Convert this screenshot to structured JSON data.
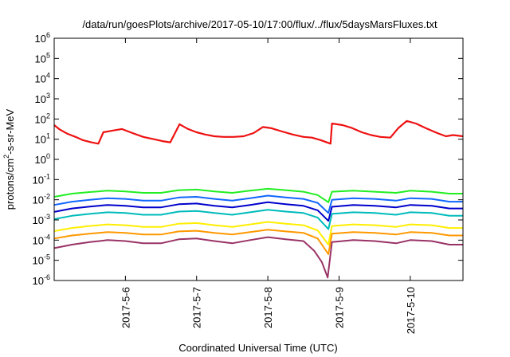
{
  "chart_data": {
    "type": "line",
    "title": "/data/run/goesPlots/archive/2017-05-10/17:00/flux/../flux/5daysMarsFluxes.txt",
    "xlabel": "Coordinated Universal Time (UTC)",
    "ylabel_parts": [
      "protons/cm",
      "2",
      "-s-sr-MeV"
    ],
    "xlim": [
      0,
      5.74
    ],
    "ylim_exponent": [
      -6,
      6
    ],
    "yscale": "log",
    "grid": false,
    "x_unit_note": "days after 2017-05-05 00:00 UTC",
    "x_ticks": [
      {
        "x": 1,
        "label": "2017-5-6"
      },
      {
        "x": 2,
        "label": "2017-5-7"
      },
      {
        "x": 3,
        "label": "2017-5-8"
      },
      {
        "x": 4,
        "label": "2017-5-9"
      },
      {
        "x": 5,
        "label": "2017-5-10"
      }
    ],
    "y_ticks": [
      {
        "exp": -6,
        "base": "10",
        "sup": "-6"
      },
      {
        "exp": -5,
        "base": "10",
        "sup": "-5"
      },
      {
        "exp": -4,
        "base": "10",
        "sup": "-4"
      },
      {
        "exp": -3,
        "base": "10",
        "sup": "-3"
      },
      {
        "exp": -2,
        "base": "10",
        "sup": "-2"
      },
      {
        "exp": -1,
        "base": "10",
        "sup": "-1"
      },
      {
        "exp": 0,
        "base": "10",
        "sup": "0"
      },
      {
        "exp": 1,
        "base": "10",
        "sup": "1"
      },
      {
        "exp": 2,
        "base": "10",
        "sup": "2"
      },
      {
        "exp": 3,
        "base": "10",
        "sup": "3"
      },
      {
        "exp": 4,
        "base": "10",
        "sup": "4"
      },
      {
        "exp": 5,
        "base": "10",
        "sup": "5"
      },
      {
        "exp": 6,
        "base": "10",
        "sup": "6"
      }
    ],
    "series": [
      {
        "color": "#ee1111",
        "width": 2.2,
        "values": [
          [
            0.0,
            50
          ],
          [
            0.08,
            30
          ],
          [
            0.18,
            19
          ],
          [
            0.3,
            13
          ],
          [
            0.4,
            9
          ],
          [
            0.52,
            7
          ],
          [
            0.62,
            6
          ],
          [
            0.69,
            22
          ],
          [
            0.8,
            26
          ],
          [
            0.95,
            32
          ],
          [
            1.1,
            20
          ],
          [
            1.25,
            13
          ],
          [
            1.4,
            10
          ],
          [
            1.52,
            8
          ],
          [
            1.63,
            7
          ],
          [
            1.76,
            55
          ],
          [
            1.88,
            32
          ],
          [
            2.0,
            22
          ],
          [
            2.12,
            17
          ],
          [
            2.25,
            14
          ],
          [
            2.38,
            13
          ],
          [
            2.52,
            13
          ],
          [
            2.66,
            14
          ],
          [
            2.8,
            20
          ],
          [
            2.93,
            40
          ],
          [
            3.05,
            35
          ],
          [
            3.2,
            24
          ],
          [
            3.35,
            17
          ],
          [
            3.5,
            13
          ],
          [
            3.62,
            12
          ],
          [
            3.74,
            9
          ],
          [
            3.88,
            6
          ],
          [
            3.9,
            60
          ],
          [
            4.05,
            50
          ],
          [
            4.18,
            36
          ],
          [
            4.32,
            22
          ],
          [
            4.45,
            16
          ],
          [
            4.58,
            13
          ],
          [
            4.72,
            12
          ],
          [
            4.83,
            35
          ],
          [
            4.95,
            80
          ],
          [
            5.08,
            60
          ],
          [
            5.22,
            35
          ],
          [
            5.38,
            20
          ],
          [
            5.5,
            14
          ],
          [
            5.6,
            16
          ],
          [
            5.74,
            14
          ]
        ]
      },
      {
        "color": "#22ee22",
        "width": 2.0,
        "values": [
          [
            0.0,
            0.014
          ],
          [
            0.25,
            0.02
          ],
          [
            0.5,
            0.024
          ],
          [
            0.75,
            0.028
          ],
          [
            1.0,
            0.026
          ],
          [
            1.25,
            0.022
          ],
          [
            1.5,
            0.022
          ],
          [
            1.75,
            0.03
          ],
          [
            2.0,
            0.032
          ],
          [
            2.25,
            0.026
          ],
          [
            2.5,
            0.022
          ],
          [
            2.75,
            0.028
          ],
          [
            3.0,
            0.035
          ],
          [
            3.25,
            0.03
          ],
          [
            3.5,
            0.025
          ],
          [
            3.7,
            0.017
          ],
          [
            3.85,
            0.0075
          ],
          [
            3.9,
            0.025
          ],
          [
            4.2,
            0.028
          ],
          [
            4.5,
            0.025
          ],
          [
            4.8,
            0.022
          ],
          [
            5.0,
            0.028
          ],
          [
            5.3,
            0.025
          ],
          [
            5.55,
            0.02
          ],
          [
            5.74,
            0.02
          ]
        ]
      },
      {
        "color": "#1166ff",
        "width": 2.0,
        "values": [
          [
            0.0,
            0.0055
          ],
          [
            0.25,
            0.008
          ],
          [
            0.5,
            0.01
          ],
          [
            0.75,
            0.012
          ],
          [
            1.0,
            0.011
          ],
          [
            1.25,
            0.009
          ],
          [
            1.5,
            0.009
          ],
          [
            1.75,
            0.013
          ],
          [
            2.0,
            0.014
          ],
          [
            2.25,
            0.011
          ],
          [
            2.5,
            0.009
          ],
          [
            2.75,
            0.012
          ],
          [
            3.0,
            0.016
          ],
          [
            3.25,
            0.013
          ],
          [
            3.5,
            0.011
          ],
          [
            3.7,
            0.007
          ],
          [
            3.85,
            0.0022
          ],
          [
            3.9,
            0.01
          ],
          [
            4.2,
            0.012
          ],
          [
            4.5,
            0.011
          ],
          [
            4.8,
            0.009
          ],
          [
            5.0,
            0.012
          ],
          [
            5.3,
            0.011
          ],
          [
            5.55,
            0.008
          ],
          [
            5.74,
            0.008
          ]
        ]
      },
      {
        "color": "#0000cc",
        "width": 2.0,
        "values": [
          [
            0.0,
            0.0025
          ],
          [
            0.25,
            0.0037
          ],
          [
            0.5,
            0.0046
          ],
          [
            0.75,
            0.0055
          ],
          [
            1.0,
            0.005
          ],
          [
            1.25,
            0.0042
          ],
          [
            1.5,
            0.0042
          ],
          [
            1.75,
            0.006
          ],
          [
            2.0,
            0.0065
          ],
          [
            2.25,
            0.005
          ],
          [
            2.5,
            0.0042
          ],
          [
            2.75,
            0.0055
          ],
          [
            3.0,
            0.0075
          ],
          [
            3.25,
            0.006
          ],
          [
            3.5,
            0.005
          ],
          [
            3.7,
            0.003
          ],
          [
            3.85,
            0.0009
          ],
          [
            3.9,
            0.0045
          ],
          [
            4.2,
            0.0055
          ],
          [
            4.5,
            0.005
          ],
          [
            4.8,
            0.0042
          ],
          [
            5.0,
            0.0055
          ],
          [
            5.3,
            0.005
          ],
          [
            5.55,
            0.0037
          ],
          [
            5.74,
            0.0037
          ]
        ]
      },
      {
        "color": "#00bbbb",
        "width": 2.0,
        "values": [
          [
            0.0,
            0.0011
          ],
          [
            0.25,
            0.0016
          ],
          [
            0.5,
            0.002
          ],
          [
            0.75,
            0.0024
          ],
          [
            1.0,
            0.0022
          ],
          [
            1.25,
            0.0018
          ],
          [
            1.5,
            0.0018
          ],
          [
            1.75,
            0.0026
          ],
          [
            2.0,
            0.0028
          ],
          [
            2.25,
            0.0022
          ],
          [
            2.5,
            0.0018
          ],
          [
            2.75,
            0.0024
          ],
          [
            3.0,
            0.0032
          ],
          [
            3.25,
            0.0026
          ],
          [
            3.5,
            0.0022
          ],
          [
            3.7,
            0.0013
          ],
          [
            3.85,
            0.00035
          ],
          [
            3.9,
            0.002
          ],
          [
            4.2,
            0.0024
          ],
          [
            4.5,
            0.0022
          ],
          [
            4.8,
            0.0018
          ],
          [
            5.0,
            0.0024
          ],
          [
            5.3,
            0.0022
          ],
          [
            5.55,
            0.0016
          ],
          [
            5.74,
            0.0016
          ]
        ]
      },
      {
        "color": "#ffee00",
        "width": 2.0,
        "values": [
          [
            0.0,
            0.00028
          ],
          [
            0.25,
            0.0004
          ],
          [
            0.5,
            0.0005
          ],
          [
            0.75,
            0.0006
          ],
          [
            1.0,
            0.00055
          ],
          [
            1.25,
            0.00045
          ],
          [
            1.5,
            0.00045
          ],
          [
            1.75,
            0.00065
          ],
          [
            2.0,
            0.0007
          ],
          [
            2.25,
            0.00055
          ],
          [
            2.5,
            0.00045
          ],
          [
            2.75,
            0.0006
          ],
          [
            3.0,
            0.0008
          ],
          [
            3.25,
            0.00065
          ],
          [
            3.5,
            0.00055
          ],
          [
            3.7,
            0.0003
          ],
          [
            3.85,
            6e-05
          ],
          [
            3.9,
            0.0005
          ],
          [
            4.2,
            0.0006
          ],
          [
            4.5,
            0.00055
          ],
          [
            4.8,
            0.00045
          ],
          [
            5.0,
            0.0006
          ],
          [
            5.3,
            0.00055
          ],
          [
            5.55,
            0.0004
          ],
          [
            5.74,
            0.0004
          ]
        ]
      },
      {
        "color": "#ff9900",
        "width": 2.0,
        "values": [
          [
            0.0,
            0.00012
          ],
          [
            0.25,
            0.00017
          ],
          [
            0.5,
            0.00021
          ],
          [
            0.75,
            0.00025
          ],
          [
            1.0,
            0.00023
          ],
          [
            1.25,
            0.00019
          ],
          [
            1.5,
            0.00019
          ],
          [
            1.75,
            0.00027
          ],
          [
            2.0,
            0.00029
          ],
          [
            2.25,
            0.00023
          ],
          [
            2.5,
            0.00019
          ],
          [
            2.75,
            0.00025
          ],
          [
            3.0,
            0.00033
          ],
          [
            3.25,
            0.00027
          ],
          [
            3.5,
            0.00023
          ],
          [
            3.7,
            0.00012
          ],
          [
            3.85,
            2e-05
          ],
          [
            3.9,
            0.00021
          ],
          [
            4.2,
            0.00025
          ],
          [
            4.5,
            0.00023
          ],
          [
            4.8,
            0.00019
          ],
          [
            5.0,
            0.00025
          ],
          [
            5.3,
            0.00023
          ],
          [
            5.55,
            0.00017
          ],
          [
            5.74,
            0.00017
          ]
        ]
      },
      {
        "color": "#993366",
        "width": 2.0,
        "values": [
          [
            0.0,
            4e-05
          ],
          [
            0.25,
            6e-05
          ],
          [
            0.5,
            8e-05
          ],
          [
            0.75,
            0.0001
          ],
          [
            1.0,
            9e-05
          ],
          [
            1.25,
            7e-05
          ],
          [
            1.5,
            7e-05
          ],
          [
            1.75,
            0.00011
          ],
          [
            2.0,
            0.00012
          ],
          [
            2.25,
            9e-05
          ],
          [
            2.5,
            7e-05
          ],
          [
            2.75,
            0.0001
          ],
          [
            3.0,
            0.00014
          ],
          [
            3.25,
            0.00011
          ],
          [
            3.5,
            9e-05
          ],
          [
            3.65,
            3e-05
          ],
          [
            3.76,
            8e-06
          ],
          [
            3.84,
            1.4e-06
          ],
          [
            3.9,
            8e-05
          ],
          [
            4.2,
            0.0001
          ],
          [
            4.5,
            9e-05
          ],
          [
            4.8,
            7e-05
          ],
          [
            5.0,
            0.0001
          ],
          [
            5.3,
            9e-05
          ],
          [
            5.55,
            6e-05
          ],
          [
            5.74,
            6e-05
          ]
        ]
      }
    ]
  }
}
